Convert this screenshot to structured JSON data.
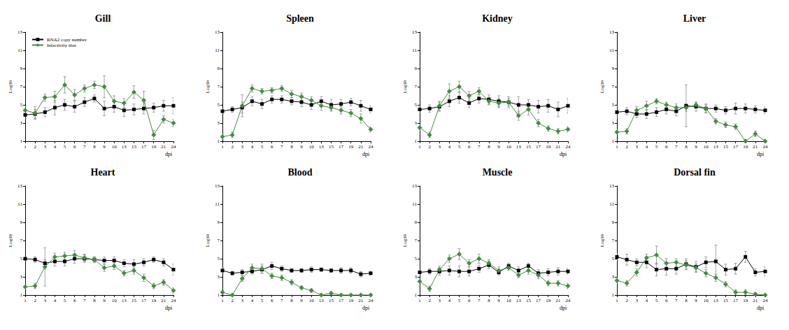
{
  "chart_data": [
    {
      "type": "line",
      "title": "Gill",
      "xlabel": "dpi",
      "ylabel": "Log10",
      "legend": "upper left",
      "categories": [
        "1",
        "2",
        "3",
        "4",
        "5",
        "6",
        "7",
        "8",
        "9",
        "10",
        "13",
        "15",
        "17",
        "19",
        "21",
        "24"
      ],
      "ylim": [
        1,
        13
      ],
      "yticks": [
        1,
        3,
        5,
        7,
        9,
        11,
        13
      ],
      "series": [
        {
          "name": "RNA2 copy number",
          "color": "#000000",
          "marker": "square",
          "values": [
            3.9,
            4.0,
            4.2,
            4.7,
            5.0,
            4.8,
            5.3,
            5.7,
            4.6,
            4.8,
            4.4,
            4.5,
            4.6,
            4.7,
            4.9,
            4.9
          ],
          "errors": [
            0.4,
            0.5,
            0.5,
            0.8,
            0.6,
            0.6,
            0.5,
            0.4,
            0.8,
            0.6,
            0.7,
            0.6,
            0.6,
            0.5,
            0.6,
            0.9
          ]
        },
        {
          "name": "Infectivity titer",
          "color": "#3f8f3a",
          "marker": "diamond",
          "values": [
            4.4,
            4.1,
            5.8,
            5.9,
            7.2,
            6.1,
            6.8,
            7.2,
            7.0,
            5.4,
            5.2,
            6.4,
            5.5,
            1.7,
            3.4,
            3.0
          ],
          "errors": [
            0.5,
            0.7,
            0.4,
            0.6,
            0.9,
            0.6,
            0.4,
            0.4,
            1.2,
            0.6,
            0.5,
            0.7,
            1.0,
            0.5,
            0.4,
            0.4
          ]
        }
      ]
    },
    {
      "type": "line",
      "title": "Spleen",
      "xlabel": "dpi",
      "ylabel": "Log10",
      "categories": [
        "1",
        "2",
        "3",
        "4",
        "5",
        "6",
        "7",
        "8",
        "9",
        "10",
        "13",
        "15",
        "17",
        "19",
        "21",
        "24"
      ],
      "ylim": [
        1,
        13
      ],
      "yticks": [
        1,
        3,
        5,
        7,
        9,
        11,
        13
      ],
      "series": [
        {
          "name": "RNA2 copy number",
          "color": "#000000",
          "marker": "square",
          "values": [
            4.3,
            4.5,
            4.7,
            5.4,
            5.1,
            5.6,
            5.6,
            5.4,
            5.3,
            5.0,
            5.4,
            5.0,
            5.1,
            5.3,
            4.9,
            4.5
          ],
          "errors": [
            0.3,
            0.3,
            0.6,
            0.5,
            0.5,
            0.4,
            0.4,
            0.4,
            0.5,
            0.5,
            0.5,
            0.6,
            0.5,
            0.4,
            0.6,
            0.4
          ]
        },
        {
          "name": "Infectivity titer",
          "color": "#3f8f3a",
          "marker": "diamond",
          "values": [
            1.5,
            1.7,
            4.9,
            6.8,
            6.5,
            6.6,
            6.8,
            6.2,
            5.9,
            5.5,
            4.9,
            4.7,
            4.4,
            4.1,
            3.5,
            2.3
          ],
          "errors": [
            0.3,
            0.3,
            1.2,
            0.4,
            0.3,
            0.3,
            0.3,
            0.4,
            0.4,
            0.4,
            0.5,
            0.4,
            0.4,
            0.4,
            0.5,
            0.3
          ]
        }
      ]
    },
    {
      "type": "line",
      "title": "Kidney",
      "xlabel": "dpi",
      "ylabel": "Log10",
      "categories": [
        "1",
        "2",
        "3",
        "4",
        "5",
        "6",
        "7",
        "8",
        "9",
        "10",
        "13",
        "15",
        "17",
        "19",
        "21",
        "24"
      ],
      "ylim": [
        1,
        13
      ],
      "yticks": [
        1,
        3,
        5,
        7,
        9,
        11,
        13
      ],
      "series": [
        {
          "name": "RNA2 copy number",
          "color": "#000000",
          "marker": "square",
          "values": [
            4.5,
            4.6,
            4.8,
            5.4,
            5.8,
            5.2,
            5.7,
            5.6,
            5.4,
            5.3,
            5.0,
            5.0,
            4.8,
            4.9,
            4.5,
            4.9
          ],
          "errors": [
            0.4,
            0.4,
            0.5,
            0.6,
            0.6,
            0.5,
            0.5,
            0.5,
            0.6,
            0.6,
            0.9,
            0.6,
            0.7,
            0.7,
            0.8,
            0.8
          ]
        },
        {
          "name": "Infectivity titer",
          "color": "#3f8f3a",
          "marker": "diamond",
          "values": [
            2.5,
            1.7,
            4.9,
            6.5,
            7.0,
            6.0,
            6.5,
            5.4,
            5.2,
            5.3,
            3.8,
            4.5,
            3.0,
            2.4,
            2.1,
            2.3
          ],
          "errors": [
            0.4,
            0.3,
            0.5,
            0.8,
            0.6,
            0.5,
            0.4,
            0.4,
            0.5,
            0.4,
            0.5,
            0.6,
            0.4,
            0.3,
            0.3,
            0.3
          ]
        }
      ]
    },
    {
      "type": "line",
      "title": "Liver",
      "xlabel": "dpi",
      "ylabel": "Log10",
      "categories": [
        "1",
        "2",
        "3",
        "4",
        "5",
        "6",
        "7",
        "8",
        "9",
        "10",
        "13",
        "15",
        "17",
        "19",
        "21",
        "24"
      ],
      "ylim": [
        1,
        13
      ],
      "yticks": [
        1,
        3,
        5,
        7,
        9,
        11,
        13
      ],
      "series": [
        {
          "name": "RNA2 copy number",
          "color": "#000000",
          "marker": "square",
          "values": [
            4.2,
            4.3,
            4.0,
            4.0,
            4.2,
            4.5,
            4.3,
            4.9,
            4.8,
            4.6,
            4.6,
            4.4,
            4.6,
            4.6,
            4.5,
            4.4
          ],
          "errors": [
            0.7,
            0.4,
            0.4,
            0.5,
            0.5,
            0.5,
            0.5,
            2.3,
            0.5,
            0.5,
            0.4,
            0.4,
            0.6,
            0.5,
            0.4,
            0.4
          ]
        },
        {
          "name": "Infectivity titer",
          "color": "#3f8f3a",
          "marker": "diamond",
          "values": [
            2.0,
            2.1,
            4.4,
            4.9,
            5.4,
            5.0,
            4.7,
            4.7,
            5.0,
            4.6,
            3.2,
            2.8,
            2.6,
            1.0,
            1.8,
            1.0
          ],
          "errors": [
            0.3,
            0.3,
            0.4,
            0.5,
            0.3,
            0.3,
            0.4,
            0.4,
            0.3,
            0.4,
            0.3,
            0.3,
            0.3,
            0.2,
            0.3,
            0.2
          ]
        }
      ]
    },
    {
      "type": "line",
      "title": "Heart",
      "xlabel": "dpi",
      "ylabel": "Log10",
      "categories": [
        "1",
        "2",
        "3",
        "4",
        "5",
        "6",
        "7",
        "8",
        "9",
        "10",
        "13",
        "15",
        "17",
        "19",
        "21",
        "24"
      ],
      "ylim": [
        1,
        13
      ],
      "yticks": [
        1,
        3,
        5,
        7,
        9,
        11,
        13
      ],
      "series": [
        {
          "name": "RNA2 copy number",
          "color": "#000000",
          "marker": "square",
          "values": [
            5.0,
            4.9,
            4.5,
            4.7,
            4.7,
            5.0,
            5.0,
            4.9,
            4.8,
            4.8,
            4.5,
            4.4,
            4.6,
            4.9,
            4.6,
            3.8
          ],
          "errors": [
            0.3,
            0.3,
            0.4,
            0.5,
            0.5,
            0.5,
            0.4,
            0.3,
            0.4,
            0.4,
            0.4,
            0.5,
            0.4,
            0.3,
            0.4,
            0.6
          ]
        },
        {
          "name": "Infectivity titer",
          "color": "#3f8f3a",
          "marker": "diamond",
          "values": [
            1.9,
            2.0,
            4.1,
            5.2,
            5.3,
            5.4,
            5.1,
            4.9,
            4.0,
            4.2,
            3.4,
            3.7,
            2.9,
            2.0,
            2.4,
            1.5
          ],
          "errors": [
            0.3,
            0.3,
            2.1,
            0.4,
            0.4,
            0.5,
            0.4,
            0.3,
            0.4,
            0.4,
            0.3,
            0.4,
            0.4,
            0.3,
            0.3,
            0.3
          ]
        }
      ]
    },
    {
      "type": "line",
      "title": "Blood",
      "xlabel": "dpi",
      "ylabel": "Log10",
      "categories": [
        "1",
        "2",
        "3",
        "4",
        "5",
        "6",
        "7",
        "8",
        "9",
        "10",
        "13",
        "15",
        "17",
        "19",
        "21",
        "24"
      ],
      "ylim": [
        1,
        13
      ],
      "yticks": [
        1,
        3,
        5,
        7,
        9,
        11,
        13
      ],
      "series": [
        {
          "name": "RNA2 copy number",
          "color": "#000000",
          "marker": "square",
          "values": [
            3.7,
            3.4,
            3.5,
            3.6,
            3.8,
            4.2,
            3.9,
            3.7,
            3.7,
            3.8,
            3.8,
            3.7,
            3.7,
            3.7,
            3.3,
            3.4
          ],
          "errors": [
            0.3,
            0.2,
            0.3,
            0.3,
            0.4,
            0.4,
            0.3,
            0.2,
            0.2,
            0.3,
            0.2,
            0.2,
            0.3,
            0.3,
            0.3,
            0.2
          ]
        },
        {
          "name": "Infectivity titer",
          "color": "#3f8f3a",
          "marker": "diamond",
          "values": [
            1.3,
            1.0,
            2.8,
            4.0,
            3.9,
            3.1,
            2.9,
            2.4,
            1.8,
            1.5,
            1.0,
            1.2,
            1.0,
            1.0,
            1.0,
            1.0
          ],
          "errors": [
            0.2,
            0.1,
            0.3,
            0.4,
            0.5,
            0.3,
            0.3,
            0.3,
            0.2,
            0.2,
            0.1,
            0.2,
            0.1,
            0.1,
            0.1,
            0.1
          ]
        }
      ]
    },
    {
      "type": "line",
      "title": "Muscle",
      "xlabel": "dpi",
      "ylabel": "Log10",
      "categories": [
        "1",
        "2",
        "3",
        "4",
        "5",
        "6",
        "7",
        "8",
        "9",
        "10",
        "13",
        "15",
        "17",
        "19",
        "21",
        "24"
      ],
      "ylim": [
        1,
        13
      ],
      "yticks": [
        1,
        3,
        5,
        7,
        9,
        11,
        13
      ],
      "series": [
        {
          "name": "RNA2 copy number",
          "color": "#000000",
          "marker": "square",
          "values": [
            3.5,
            3.6,
            3.6,
            3.7,
            3.6,
            3.6,
            3.9,
            4.3,
            3.5,
            4.2,
            3.7,
            4.2,
            3.4,
            3.5,
            3.6,
            3.6
          ],
          "errors": [
            0.3,
            0.3,
            0.4,
            0.5,
            0.6,
            0.5,
            0.4,
            0.4,
            0.3,
            0.3,
            0.4,
            0.3,
            0.4,
            0.4,
            0.4,
            0.3
          ]
        },
        {
          "name": "Infectivity titer",
          "color": "#3f8f3a",
          "marker": "diamond",
          "values": [
            2.5,
            1.7,
            3.8,
            5.0,
            5.5,
            4.5,
            5.0,
            4.5,
            3.7,
            4.0,
            3.2,
            3.7,
            3.2,
            2.3,
            2.3,
            2.0
          ],
          "errors": [
            0.3,
            0.3,
            0.4,
            0.4,
            0.6,
            0.4,
            0.5,
            0.4,
            0.4,
            0.3,
            0.3,
            0.4,
            0.4,
            0.3,
            0.3,
            0.3
          ]
        }
      ]
    },
    {
      "type": "line",
      "title": "Dorsal fin",
      "xlabel": "dpi",
      "ylabel": "Log10",
      "categories": [
        "1",
        "2",
        "3",
        "4",
        "5",
        "6",
        "7",
        "8",
        "9",
        "10",
        "13",
        "15",
        "17",
        "19",
        "21",
        "24"
      ],
      "ylim": [
        1,
        13
      ],
      "yticks": [
        1,
        3,
        5,
        7,
        9,
        11,
        13
      ],
      "series": [
        {
          "name": "RNA2 copy number",
          "color": "#000000",
          "marker": "square",
          "values": [
            5.2,
            4.9,
            4.6,
            4.6,
            3.8,
            3.9,
            3.9,
            4.4,
            4.1,
            4.6,
            4.7,
            3.8,
            3.9,
            5.2,
            3.5,
            3.6
          ],
          "errors": [
            0.4,
            0.6,
            0.4,
            0.6,
            0.7,
            0.7,
            0.6,
            0.6,
            0.6,
            0.6,
            1.8,
            0.6,
            0.6,
            0.6,
            0.4,
            0.5
          ]
        },
        {
          "name": "Infectivity titer",
          "color": "#3f8f3a",
          "marker": "diamond",
          "values": [
            2.6,
            2.3,
            3.5,
            5.1,
            5.4,
            4.5,
            4.6,
            4.3,
            4.0,
            3.4,
            2.9,
            2.2,
            1.3,
            1.3,
            1.1,
            1.0
          ],
          "errors": [
            0.4,
            0.3,
            0.4,
            0.4,
            1.0,
            0.5,
            0.4,
            0.5,
            0.4,
            0.4,
            0.4,
            0.3,
            0.3,
            0.3,
            0.2,
            0.1
          ]
        }
      ]
    }
  ]
}
